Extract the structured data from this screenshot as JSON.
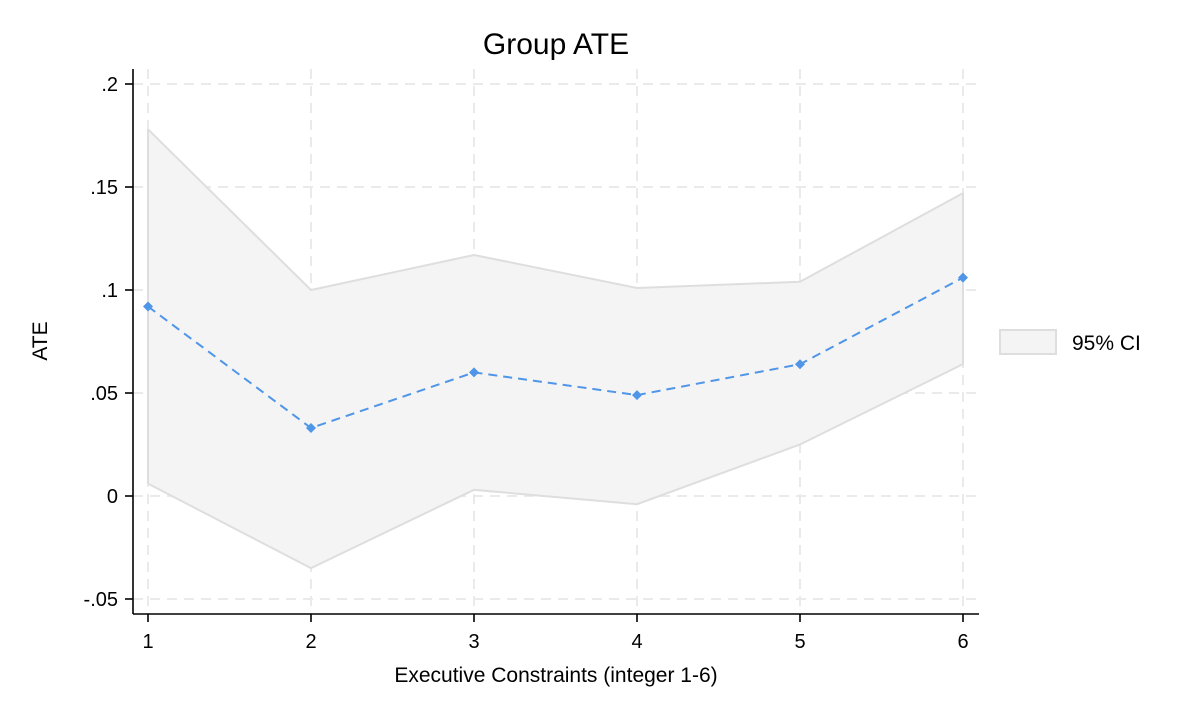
{
  "chart_data": {
    "type": "line",
    "title": "Group ATE",
    "xlabel": "Executive Constraints (integer 1-6)",
    "ylabel": "ATE",
    "x": [
      1,
      2,
      3,
      4,
      5,
      6
    ],
    "x_tick_labels": [
      "1",
      "2",
      "3",
      "4",
      "5",
      "6"
    ],
    "y_ticks": [
      -0.05,
      0,
      0.05,
      0.1,
      0.15,
      0.2
    ],
    "y_tick_labels": [
      "-.05",
      "0",
      ".05",
      ".1",
      ".15",
      ".2"
    ],
    "xlim": [
      1,
      6
    ],
    "ylim": [
      -0.05,
      0.2
    ],
    "grid": true,
    "legend_position": "right",
    "series": [
      {
        "kind": "band",
        "name": "95% CI",
        "lower": [
          0.006,
          -0.035,
          0.003,
          -0.004,
          0.025,
          0.064
        ],
        "upper": [
          0.178,
          0.1,
          0.117,
          0.101,
          0.104,
          0.147
        ],
        "color": "#f4f4f4",
        "line_color": "#dedede"
      },
      {
        "kind": "line",
        "values": [
          0.092,
          0.033,
          0.06,
          0.049,
          0.064,
          0.106
        ],
        "color": "#4f95e8",
        "style": "dashed",
        "marker": "diamond"
      }
    ]
  }
}
